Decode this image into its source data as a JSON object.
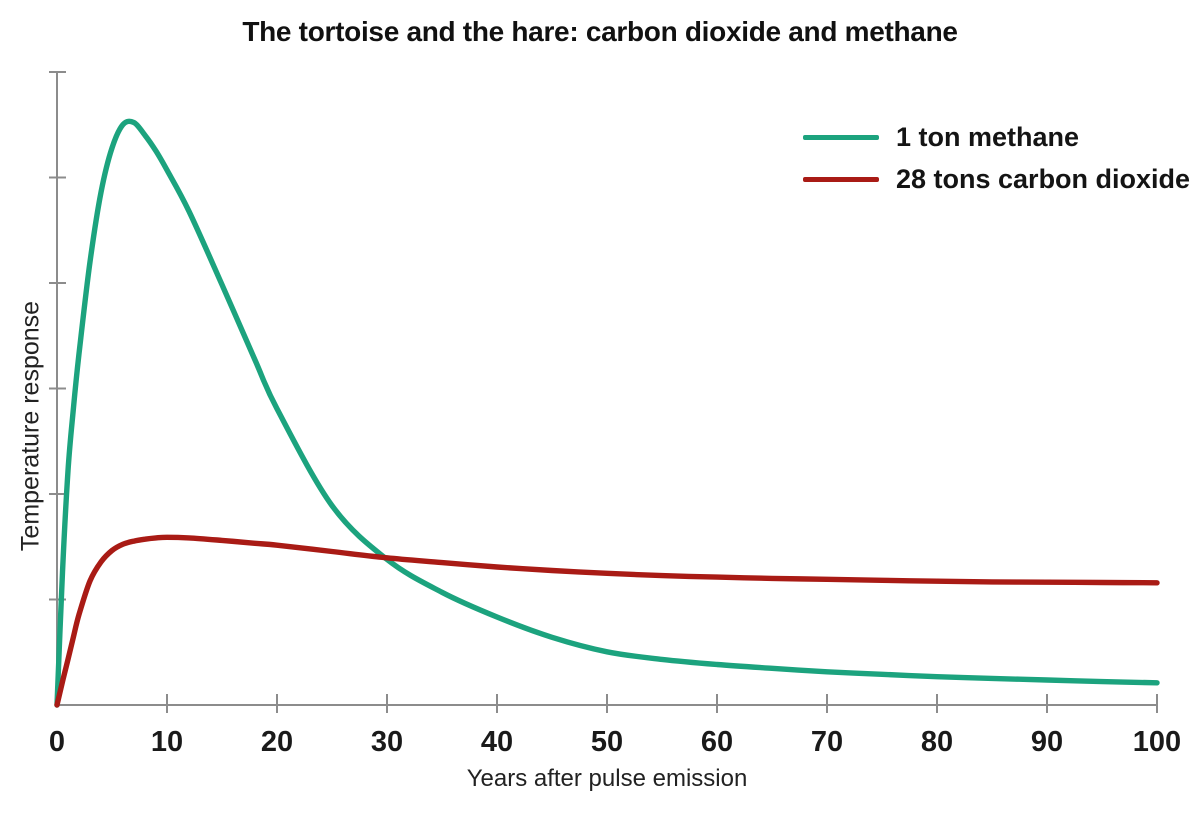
{
  "chart_data": {
    "type": "line",
    "title": "The tortoise and the hare: carbon dioxide and methane",
    "xlabel": "Years after pulse emission",
    "ylabel": "Temperature response",
    "xlim": [
      0,
      100
    ],
    "ylim": [
      0,
      1
    ],
    "x_tick_labels": [
      "0",
      "10",
      "20",
      "30",
      "40",
      "50",
      "60",
      "70",
      "80",
      "90",
      "100"
    ],
    "x_ticks": [
      0,
      10,
      20,
      30,
      40,
      50,
      60,
      70,
      80,
      90,
      100
    ],
    "y_tick_count": 6,
    "y_tick_labels": [],
    "grid": false,
    "legend_position": "top-right",
    "x": [
      0,
      0.5,
      1,
      1.5,
      2,
      3,
      4,
      5,
      6,
      7,
      8,
      9,
      10,
      12,
      15,
      18,
      20,
      25,
      30,
      35,
      40,
      45,
      50,
      55,
      60,
      65,
      70,
      75,
      80,
      85,
      90,
      95,
      100
    ],
    "series": [
      {
        "name": "1 ton methane",
        "color": "#1CA37E",
        "values": [
          0,
          0.21,
          0.37,
          0.47,
          0.555,
          0.7,
          0.81,
          0.88,
          0.917,
          0.92,
          0.9,
          0.875,
          0.845,
          0.78,
          0.664,
          0.545,
          0.468,
          0.315,
          0.23,
          0.178,
          0.139,
          0.107,
          0.084,
          0.072,
          0.064,
          0.058,
          0.0525,
          0.0485,
          0.0447,
          0.042,
          0.0395,
          0.037,
          0.035
        ]
      },
      {
        "name": "28 tons carbon dioxide",
        "color": "#A91B15",
        "values": [
          0,
          0.037,
          0.072,
          0.108,
          0.143,
          0.196,
          0.226,
          0.244,
          0.254,
          0.259,
          0.262,
          0.264,
          0.265,
          0.264,
          0.26,
          0.2555,
          0.2525,
          0.2425,
          0.2325,
          0.225,
          0.218,
          0.2125,
          0.208,
          0.2045,
          0.202,
          0.2,
          0.1985,
          0.197,
          0.1955,
          0.1945,
          0.194,
          0.1935,
          0.193
        ]
      }
    ],
    "axis_color": "#8C8C8C"
  }
}
